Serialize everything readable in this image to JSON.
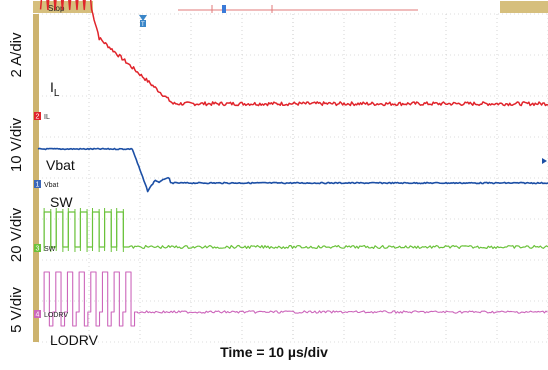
{
  "chart_data": {
    "type": "line",
    "title": "",
    "xlabel": "Time = 10 µs/div",
    "status": "Stop",
    "x_divisions": 10,
    "x_unit": "µs",
    "x_per_div": 10,
    "colors": {
      "IL": "#e0242b",
      "Vbat": "#1c4fa5",
      "SW": "#6ac23a",
      "LODRV": "#cc66bb",
      "frame": "#cdb36e",
      "grid": "#bbbbbb"
    },
    "channels": [
      {
        "id": "IL",
        "label": "I",
        "label_sub": "L",
        "scale": "2 A/div",
        "marker_num": "2",
        "marker_text": "IL",
        "color": "#e0242b",
        "description_points": [
          [
            0,
            3.6
          ],
          [
            4.6,
            2.6
          ],
          [
            10,
            1.8
          ],
          [
            26.5,
            0.3
          ],
          [
            100,
            0.3
          ]
        ],
        "ripple": {
          "start": 0.5,
          "end": 10.5,
          "cycles": 7,
          "low_div": 2.6,
          "high_div": 3.6
        }
      },
      {
        "id": "Vbat",
        "label": "Vbat",
        "scale": "10 V/div",
        "marker_num": "1",
        "marker_text": "Vbat",
        "color": "#1c4fa5"
      },
      {
        "id": "SW",
        "label": "SW",
        "scale": "20 V/div",
        "marker_num": "3",
        "marker_text": "SW",
        "color": "#6ac23a"
      },
      {
        "id": "LODRV",
        "label": "LODRV",
        "scale": "5 V/div",
        "marker_num": "4",
        "marker_text": "LODRV",
        "color": "#cc66bb"
      }
    ]
  }
}
